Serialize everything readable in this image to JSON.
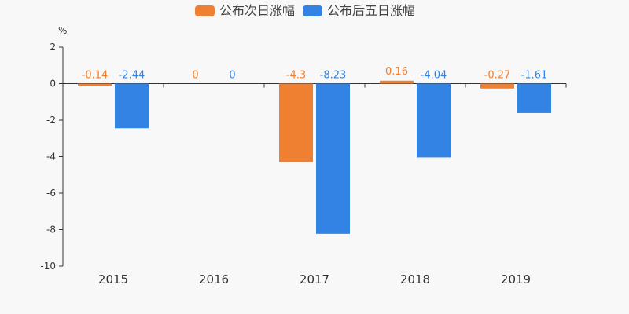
{
  "chart_data": {
    "type": "bar",
    "categories": [
      "2015",
      "2016",
      "2017",
      "2018",
      "2019"
    ],
    "series": [
      {
        "name": "公布次日涨幅",
        "values": [
          -0.14,
          0,
          -4.3,
          0.16,
          -0.27
        ],
        "color": "#ef7f31"
      },
      {
        "name": "公布后五日涨幅",
        "values": [
          -2.44,
          0,
          -8.23,
          -4.04,
          -1.61
        ],
        "color": "#3383e4"
      }
    ],
    "ylabel": "%",
    "ylim": [
      -10,
      2
    ],
    "yticks": [
      2,
      0,
      -2,
      -4,
      -6,
      -8,
      -10
    ],
    "grid": false,
    "legend": "top-center",
    "data_labels": true
  }
}
